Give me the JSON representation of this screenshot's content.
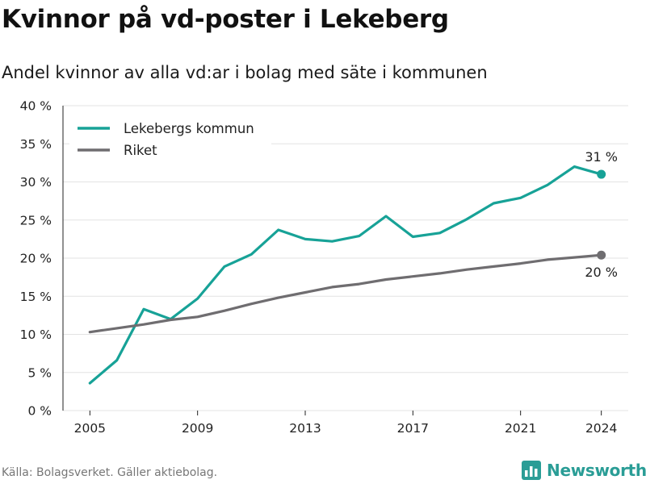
{
  "title": "Kvinnor på vd-poster i Lekeberg",
  "subtitle": "Andel kvinnor av alla vd:ar i bolag med säte i kommunen",
  "source": "Källa: Bolagsverket. Gäller aktiebolag.",
  "brand": {
    "name": "Newsworthy",
    "icon": "bar-chart-icon",
    "color": "#2a9d96"
  },
  "chart_data": {
    "type": "line",
    "x": [
      2005,
      2006,
      2007,
      2008,
      2009,
      2010,
      2011,
      2012,
      2013,
      2014,
      2015,
      2016,
      2017,
      2018,
      2019,
      2020,
      2021,
      2022,
      2023,
      2024
    ],
    "xticks": [
      2005,
      2009,
      2013,
      2017,
      2021,
      2024
    ],
    "xlim": [
      2004,
      2025
    ],
    "ylim": [
      0,
      40
    ],
    "yticks": [
      0,
      5,
      10,
      15,
      20,
      25,
      30,
      35,
      40
    ],
    "ytick_labels": [
      "0 %",
      "5 %",
      "10 %",
      "15 %",
      "20 %",
      "25 %",
      "30 %",
      "35 %",
      "40 %"
    ],
    "grid": true,
    "legend_position": "top-left",
    "series": [
      {
        "name": "Lekebergs kommun",
        "color": "#17a297",
        "values": [
          3.6,
          6.6,
          13.3,
          12.0,
          14.7,
          18.9,
          20.5,
          23.7,
          22.5,
          22.2,
          22.9,
          25.5,
          22.8,
          23.3,
          25.1,
          27.2,
          27.9,
          29.6,
          32.0,
          31.0
        ],
        "end_label": "31 %"
      },
      {
        "name": "Riket",
        "color": "#6f6d70",
        "values": [
          10.3,
          10.8,
          11.3,
          11.9,
          12.3,
          13.1,
          14.0,
          14.8,
          15.5,
          16.2,
          16.6,
          17.2,
          17.6,
          18.0,
          18.5,
          18.9,
          19.3,
          19.8,
          20.1,
          20.4
        ],
        "end_label": "20 %"
      }
    ]
  }
}
